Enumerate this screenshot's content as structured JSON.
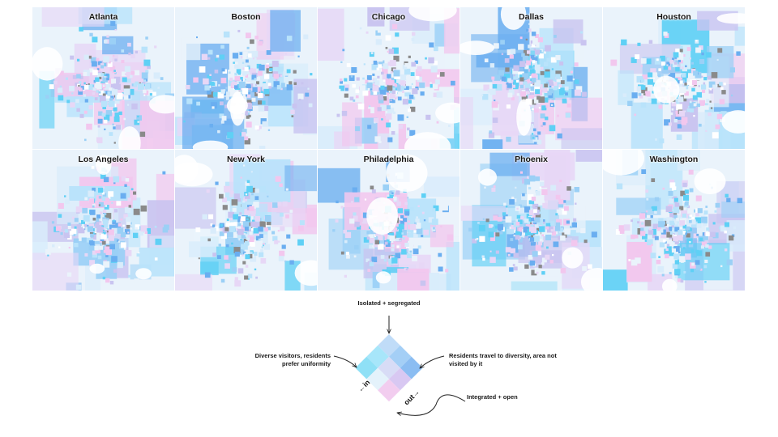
{
  "maps": [
    {
      "city": "Atlanta"
    },
    {
      "city": "Boston"
    },
    {
      "city": "Chicago"
    },
    {
      "city": "Dallas"
    },
    {
      "city": "Houston"
    },
    {
      "city": "Los Angeles"
    },
    {
      "city": "New York"
    },
    {
      "city": "Philadelphia"
    },
    {
      "city": "Phoenix"
    },
    {
      "city": "Washington"
    }
  ],
  "legend": {
    "top": "Isolated + segregated",
    "left": "Diverse visitors, residents prefer uniformity",
    "right": "Residents travel to diversity, area not visited by it",
    "bottom": "Integrated + open",
    "axis_in": "←in",
    "axis_out": "out→"
  },
  "colors": {
    "base": "#eaf3fb",
    "blue_strong": "#6aaef0",
    "cyan": "#5fd0f5",
    "pink": "#f2c7ee",
    "lavender": "#c9c4f0",
    "water": "#ffffff",
    "gray": "#8a8a8a"
  }
}
